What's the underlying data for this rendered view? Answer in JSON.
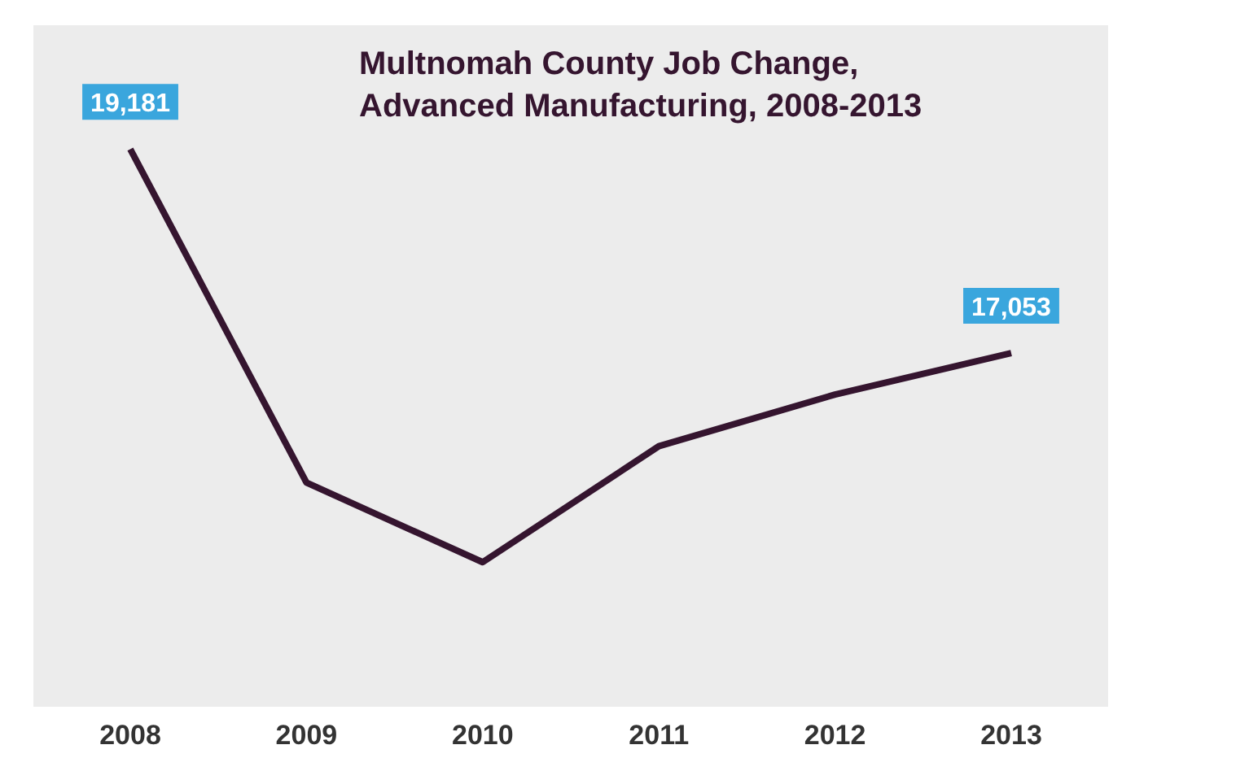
{
  "chart_data": {
    "type": "line",
    "title": "Multnomah County Job Change,\nAdvanced Manufacturing,  2008-2013",
    "categories": [
      "2008",
      "2009",
      "2010",
      "2011",
      "2012",
      "2013"
    ],
    "series": [
      {
        "color": "#35152f",
        "values": [
          19181,
          15700,
          14870,
          16080,
          16620,
          17053
        ],
        "value_labels": [
          "19,181",
          null,
          null,
          null,
          null,
          "17,053"
        ]
      }
    ],
    "grid": false,
    "marker": "none",
    "line_style": "solid"
  }
}
